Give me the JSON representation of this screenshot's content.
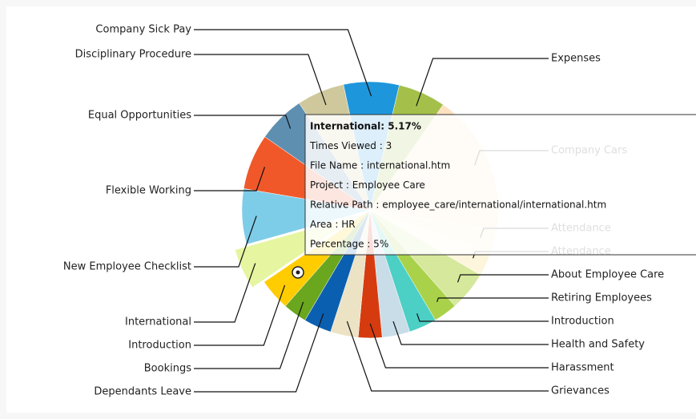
{
  "chart_data": {
    "type": "pie",
    "categories": [
      "Company Sick Pay",
      "Expenses",
      "Company Cars",
      "Attendance",
      "Attendance",
      "About Employee Care",
      "Retiring Employees",
      "Introduction",
      "Health and Safety",
      "Harassment",
      "Grievances",
      "Dependants Leave",
      "Bookings",
      "Introduction",
      "International",
      "New Employee Checklist",
      "Flexible Working",
      "Equal Opportunities",
      "Disciplinary Procedure"
    ],
    "values": [
      7,
      6,
      17.8,
      3,
      3,
      5,
      3,
      3.5,
      3.5,
      3,
      3.5,
      3.5,
      3,
      4,
      5.17,
      7,
      7,
      6,
      6
    ],
    "colors": [
      "#1e96dc",
      "#a4c04a",
      "#fde1c0",
      "#fff0c8",
      "#fdf6dc",
      "#d6e89c",
      "#a9d24a",
      "#4ccfc4",
      "#c8dde8",
      "#d63b0f",
      "#ece2c4",
      "#0b5fb0",
      "#6aa61e",
      "#ffcc00",
      "#e5f5a0",
      "#7ecde8",
      "#f0582a",
      "#5f8fb0",
      "#cfc89c"
    ],
    "exploded": "International",
    "tooltip": {
      "title": "International: 5.17%",
      "lines": [
        "Times Viewed : 3",
        "File Name : international.htm",
        "Project : Employee Care",
        "Relative Path : employee_care/international/international.htm",
        "Area : HR",
        "Percentage : 5%"
      ]
    }
  }
}
